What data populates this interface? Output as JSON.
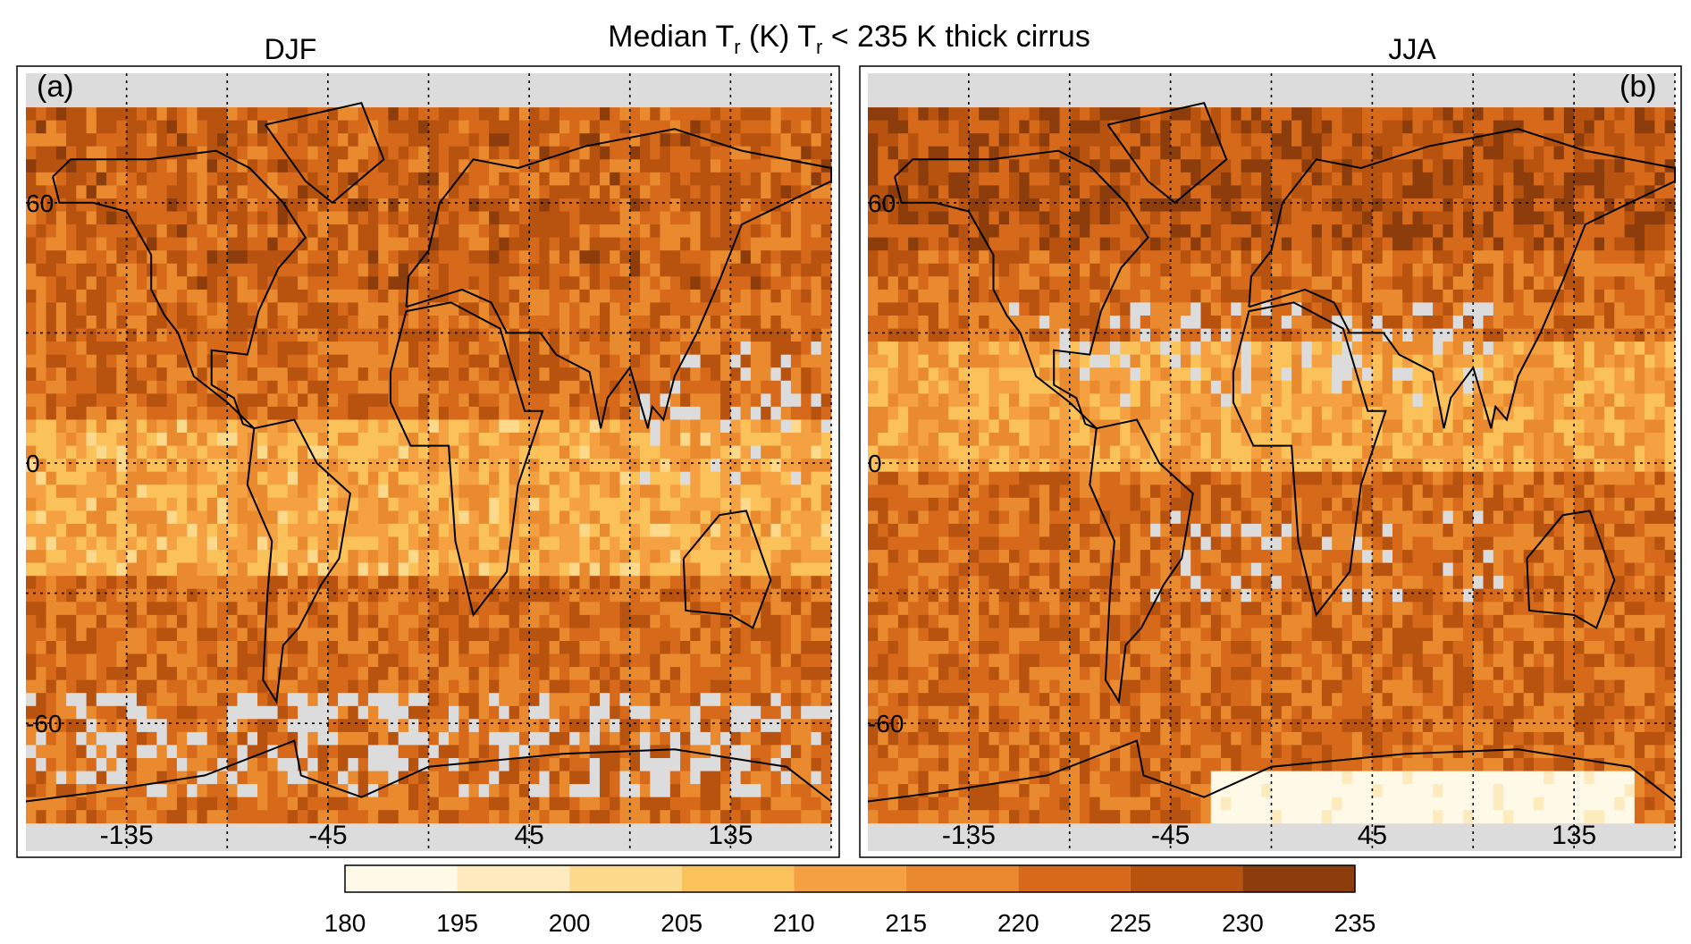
{
  "title": {
    "part1": "Median T",
    "sub1": "r",
    "part2": " (K) T",
    "sub2": "r",
    "part3": " < 235 K  thick cirrus"
  },
  "colors": {
    "missing": "#dcdcdc",
    "bins": [
      "#fff9e8",
      "#feebbd",
      "#fcd98b",
      "#fbc25a",
      "#f5a142",
      "#ea8a2e",
      "#d76a1a",
      "#b8520f",
      "#8d3d0c"
    ],
    "coast": "#000000"
  },
  "chart_data": {
    "type": "heatmap",
    "title": "Median Tr (K) Tr < 235 K thick cirrus",
    "panels": [
      {
        "id": "a",
        "label": "(a)",
        "season": "DJF"
      },
      {
        "id": "b",
        "label": "(b)",
        "season": "JJA"
      }
    ],
    "x_ticks": [
      "-135",
      "-45",
      "45",
      "135"
    ],
    "x_grid": [
      -135,
      -90,
      -45,
      0,
      45,
      90,
      135,
      180
    ],
    "y_ticks": [
      "60",
      "0",
      "-60"
    ],
    "y_grid": [
      60,
      30,
      0,
      -30,
      -60
    ],
    "xlim": [
      -180,
      180
    ],
    "ylim": [
      -82,
      82
    ],
    "colorbar": {
      "ticks": [
        "180",
        "195",
        "200",
        "205",
        "210",
        "215",
        "220",
        "225",
        "230",
        "235"
      ],
      "edges": [
        180,
        195,
        200,
        205,
        210,
        215,
        220,
        225,
        230,
        235
      ],
      "units": "K"
    }
  }
}
